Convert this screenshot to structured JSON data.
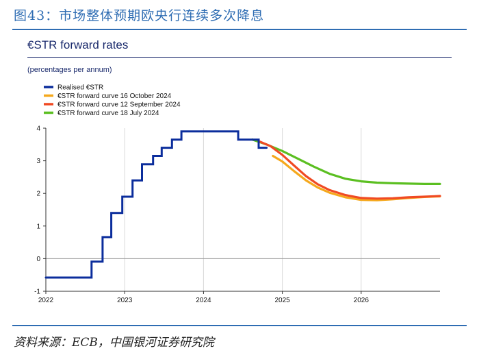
{
  "header": {
    "figure_title": "图43：市场整体预期欧央行连续多次降息",
    "source": "资料来源：ECB，中国银河证券研究院"
  },
  "chart_data": {
    "type": "line",
    "title": "€STR forward rates",
    "units": "(percentages per annum)",
    "xlabel": "",
    "ylabel": "",
    "xlim": [
      2022.0,
      2027.0
    ],
    "ylim": [
      -1,
      4
    ],
    "x_ticks": [
      "2022",
      "2023",
      "2024",
      "2025",
      "2026"
    ],
    "x_tick_values": [
      2022,
      2023,
      2024,
      2025,
      2026
    ],
    "y_ticks": [
      "4",
      "3",
      "2",
      "1",
      "0",
      "-1"
    ],
    "y_tick_values": [
      4,
      3,
      2,
      1,
      0,
      -1
    ],
    "legend_position": "top-left",
    "series": [
      {
        "name": "Realised €STR",
        "color": "#0b2d9c",
        "step": true,
        "x": [
          2022.0,
          2022.58,
          2022.58,
          2022.72,
          2022.72,
          2022.83,
          2022.83,
          2022.97,
          2022.97,
          2023.1,
          2023.1,
          2023.22,
          2023.22,
          2023.36,
          2023.36,
          2023.47,
          2023.47,
          2023.6,
          2023.6,
          2023.72,
          2023.72,
          2024.44,
          2024.44,
          2024.7,
          2024.7,
          2024.8,
          2024.8
        ],
        "y": [
          -0.58,
          -0.58,
          -0.09,
          -0.09,
          0.66,
          0.66,
          1.4,
          1.4,
          1.9,
          1.9,
          2.4,
          2.4,
          2.89,
          2.89,
          3.15,
          3.15,
          3.4,
          3.4,
          3.65,
          3.65,
          3.9,
          3.9,
          3.65,
          3.65,
          3.4,
          3.4,
          3.4
        ]
      },
      {
        "name": "€STR forward curve 16 October 2024",
        "color": "#f5a81c",
        "x": [
          2024.88,
          2025.0,
          2025.15,
          2025.3,
          2025.45,
          2025.6,
          2025.8,
          2026.0,
          2026.2,
          2026.4,
          2026.6,
          2026.8,
          2027.0
        ],
        "y": [
          3.15,
          2.98,
          2.68,
          2.4,
          2.18,
          2.02,
          1.88,
          1.8,
          1.79,
          1.82,
          1.86,
          1.89,
          1.91
        ]
      },
      {
        "name": "€STR forward curve 12 September 2024",
        "color": "#f04a23",
        "x": [
          2024.7,
          2024.85,
          2025.0,
          2025.15,
          2025.3,
          2025.45,
          2025.6,
          2025.8,
          2026.0,
          2026.2,
          2026.4,
          2026.6,
          2026.8,
          2027.0
        ],
        "y": [
          3.6,
          3.45,
          3.18,
          2.85,
          2.53,
          2.28,
          2.1,
          1.95,
          1.86,
          1.84,
          1.85,
          1.88,
          1.9,
          1.92
        ]
      },
      {
        "name": "€STR forward curve 18 July 2024",
        "color": "#5bbf21",
        "x": [
          2024.62,
          2024.8,
          2025.0,
          2025.2,
          2025.4,
          2025.6,
          2025.8,
          2026.0,
          2026.2,
          2026.4,
          2026.6,
          2026.8,
          2027.0
        ],
        "y": [
          3.65,
          3.5,
          3.3,
          3.06,
          2.82,
          2.6,
          2.45,
          2.37,
          2.33,
          2.31,
          2.3,
          2.29,
          2.29
        ]
      }
    ]
  }
}
